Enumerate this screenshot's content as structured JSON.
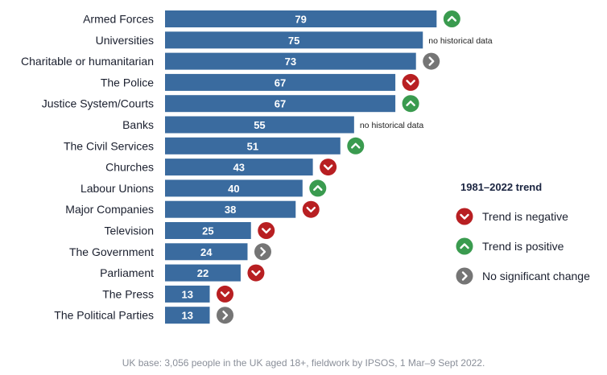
{
  "chart_data": {
    "type": "bar",
    "orientation": "horizontal",
    "categories": [
      "Armed Forces",
      "Universities",
      "Charitable or humanitarian",
      "The Police",
      "Justice System/Courts",
      "Banks",
      "The Civil Services",
      "Churches",
      "Labour Unions",
      "Major Companies",
      "Television",
      "The Government",
      "Parliament",
      "The Press",
      "The Political Parties"
    ],
    "values": [
      79,
      75,
      73,
      67,
      67,
      55,
      51,
      43,
      40,
      38,
      25,
      24,
      22,
      13,
      13
    ],
    "trend": [
      "positive",
      "none",
      "no-change",
      "negative",
      "positive",
      "none",
      "positive",
      "negative",
      "positive",
      "negative",
      "negative",
      "no-change",
      "negative",
      "negative",
      "no-change"
    ],
    "no_data_note": "no historical data",
    "bar_color": "#3a6b9f",
    "trend_colors": {
      "negative": "#b81f22",
      "positive": "#3a9b4f",
      "no-change": "#757575"
    },
    "legend": {
      "title": "1981–2022 trend",
      "position": "right",
      "items": [
        {
          "key": "negative",
          "label": "Trend is negative"
        },
        {
          "key": "positive",
          "label": "Trend is positive"
        },
        {
          "key": "no-change",
          "label": "No significant change"
        }
      ]
    },
    "footer": "UK base: 3,056 people in the UK aged 18+, fieldwork by IPSOS,  1 Mar–9 Sept 2022."
  }
}
